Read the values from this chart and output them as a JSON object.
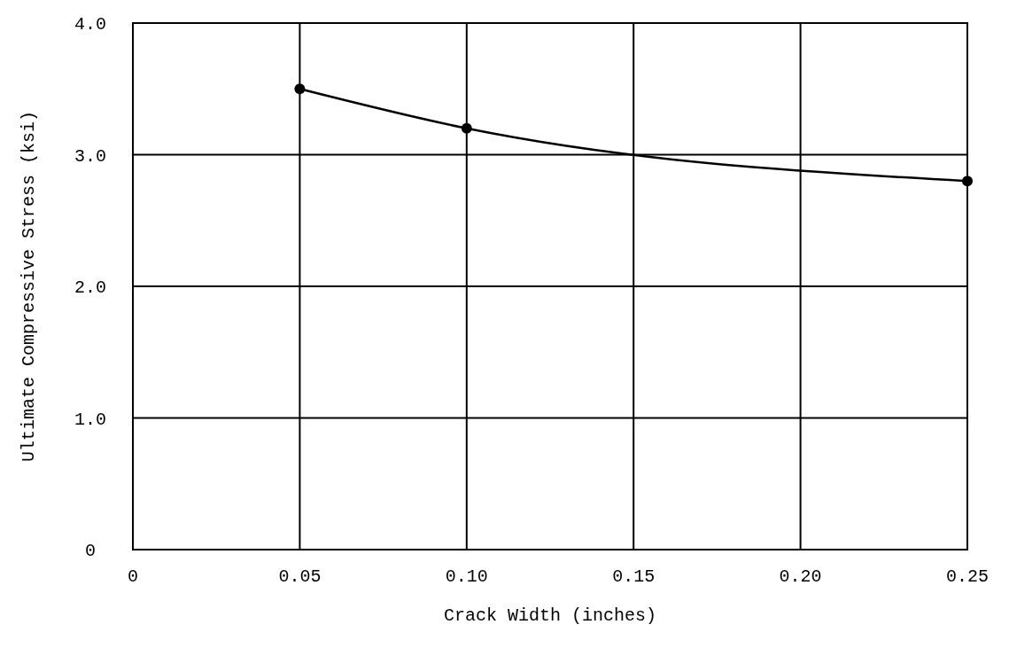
{
  "chart_data": {
    "type": "line",
    "xlabel": "Crack Width (inches)",
    "ylabel": "Ultimate Compressive Stress (ksi)",
    "x": [
      0.05,
      0.1,
      0.25
    ],
    "series": [
      {
        "color": "#000000",
        "values": [
          3.5,
          3.2,
          2.8
        ]
      }
    ],
    "xlim": [
      0,
      0.25
    ],
    "ylim": [
      0,
      4
    ],
    "xticks": [
      0,
      0.05,
      {
        "value": 0.1,
        "label": "0.10"
      },
      0.15,
      {
        "value": 0.2,
        "label": "0.20"
      },
      0.25
    ],
    "yticks": [
      0,
      {
        "value": 1,
        "label": "1.0"
      },
      {
        "value": 2,
        "label": "2.0"
      },
      {
        "value": 3,
        "label": "3.0"
      },
      {
        "value": 4,
        "label": "4.0"
      }
    ],
    "grid": true,
    "marker": "circle",
    "line_style": "solid"
  }
}
